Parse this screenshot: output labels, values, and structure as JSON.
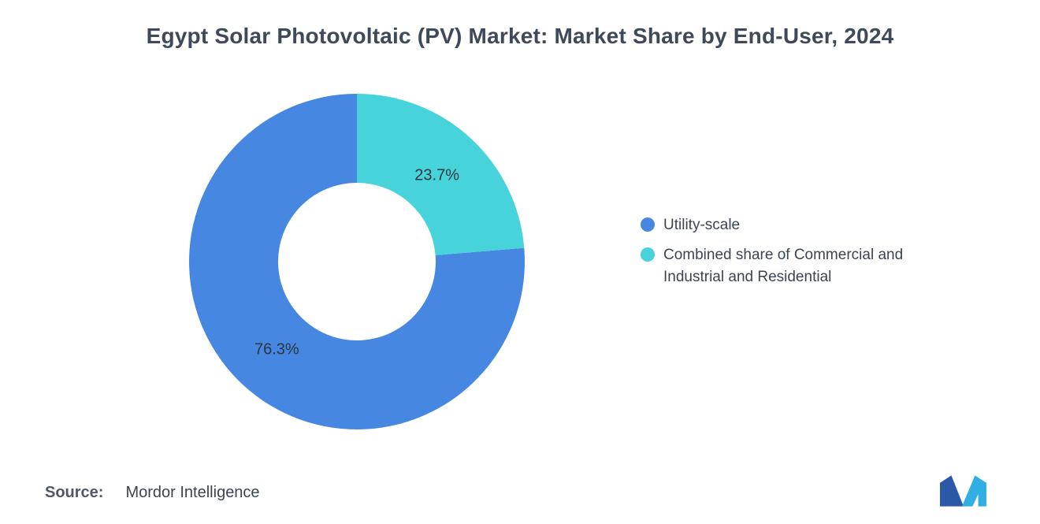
{
  "title": "Egypt Solar Photovoltaic (PV) Market: Market Share by End-User, 2024",
  "source": {
    "label": "Source:",
    "value": "Mordor Intelligence"
  },
  "colors": {
    "primary_blue": "#4687E2",
    "secondary_teal": "#46D4DA",
    "title_text": "#3E4A5A",
    "slice_label_text": "#2D3540"
  },
  "chart_data": {
    "type": "pie",
    "donut": true,
    "title": "Egypt Solar Photovoltaic (PV) Market: Market Share by End-User, 2024",
    "start_angle_deg": 0,
    "direction": "counterclockwise",
    "legend_position": "right",
    "slices": [
      {
        "label": "Utility-scale",
        "value": 76.3,
        "display": "76.3%",
        "color": "#4687E2"
      },
      {
        "label": "Combined share of Commercial and Industrial and Residential",
        "value": 23.7,
        "display": "23.7%",
        "color": "#46D4DA"
      }
    ]
  },
  "legend": {
    "items": [
      {
        "label": "Utility-scale",
        "color": "#4687E2"
      },
      {
        "label": "Combined share of Commercial and Industrial and Residential",
        "color": "#46D4DA"
      }
    ]
  },
  "logo": {
    "name": "mordor-intelligence-logo",
    "dark": "#2B59A8",
    "light": "#31AEE4"
  }
}
